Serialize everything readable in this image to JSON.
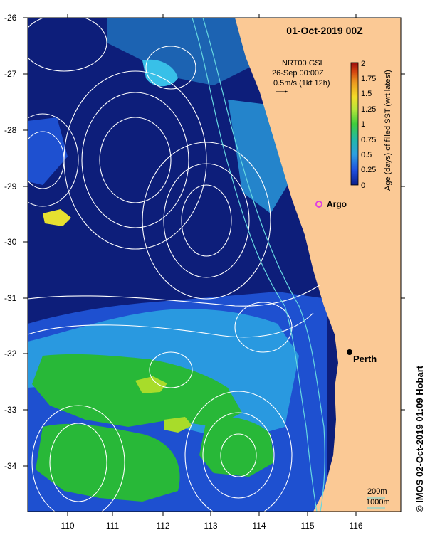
{
  "title": "01-Oct-2019 00Z",
  "source_info": {
    "line1": "NRT00 GSL",
    "line2": "26-Sep 00:00Z",
    "line3": "0.5m/s (1kt 12h)"
  },
  "colorbar": {
    "label": "Age (days) of filled SST (wrt latest)",
    "ticks": [
      "2",
      "1.75",
      "1.5",
      "1.25",
      "1",
      "0.75",
      "0.5",
      "0.25",
      "0"
    ],
    "colors": [
      "#9a0c0c",
      "#d3410f",
      "#ec9820",
      "#f4dc28",
      "#b8e63a",
      "#3fce3c",
      "#22b8a8",
      "#2d9fe0",
      "#1f4fe0",
      "#0b1e8a"
    ]
  },
  "y_axis": {
    "labels": [
      "-26",
      "-27",
      "-28",
      "-29",
      "-30",
      "-31",
      "-32",
      "-33",
      "-34"
    ]
  },
  "x_axis": {
    "labels": [
      "110",
      "111",
      "112",
      "113",
      "114",
      "115",
      "116"
    ]
  },
  "places": {
    "argo": {
      "label": "Argo",
      "color": "#e040e0"
    },
    "perth": {
      "label": "Perth"
    }
  },
  "scale": {
    "depth1": "200m",
    "depth2": "1000m"
  },
  "copyright": "© IMOS 02-Oct-2019 01:09 Hobart",
  "colors": {
    "land": "#fbc995",
    "deep_ocean": "#0d1e7a",
    "mid_blue": "#1e50d0",
    "light_blue": "#2a9de0",
    "cyan": "#38c0e8",
    "green": "#28b838",
    "lime": "#a8dc2a",
    "contour": "#ffffff",
    "isobath": "#66d8e0"
  }
}
